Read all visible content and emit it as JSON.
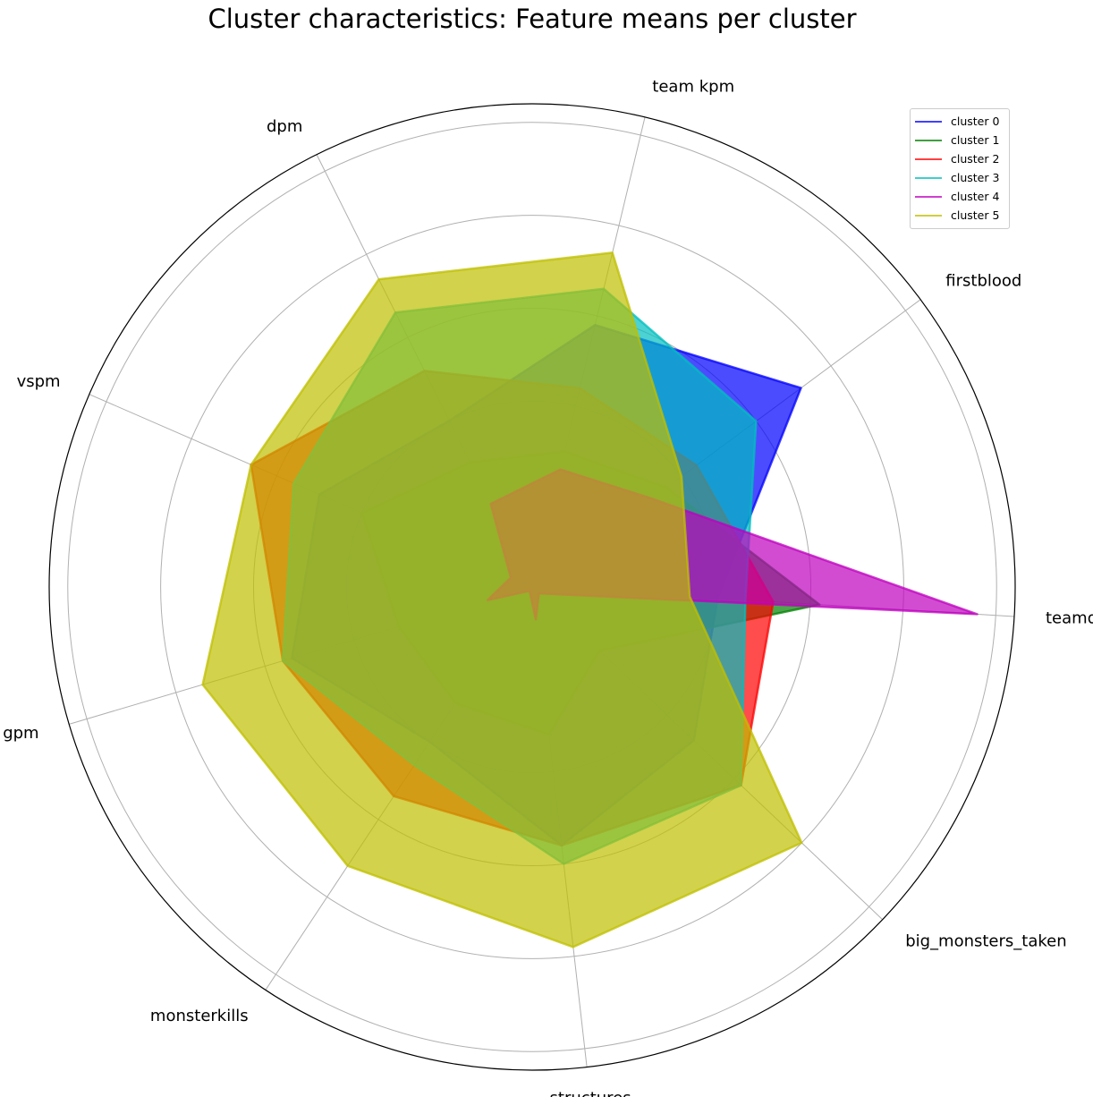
{
  "chart_data": {
    "type": "radar",
    "title": "Cluster characteristics: Feature means per cluster",
    "axes": [
      "teamdeaths",
      "firstblood",
      "team kpm",
      "dpm",
      "vspm",
      "earned gpm",
      "monsterkills",
      "structures",
      "big_monsters_taken"
    ],
    "radial_range": [
      0,
      5.2
    ],
    "grid": true,
    "legend_position": "top-right",
    "series": [
      {
        "name": "cluster 0",
        "color": "#0000ff",
        "values": [
          2.0,
          3.6,
          2.9,
          2.0,
          2.5,
          2.7,
          2.0,
          2.8,
          2.4
        ]
      },
      {
        "name": "cluster 1",
        "color": "#008000",
        "values": [
          3.1,
          1.8,
          1.5,
          1.5,
          2.0,
          1.5,
          1.5,
          1.6,
          1.0
        ]
      },
      {
        "name": "cluster 2",
        "color": "#ff0000",
        "values": [
          2.6,
          2.2,
          2.2,
          2.6,
          3.3,
          2.8,
          2.7,
          2.8,
          3.1
        ]
      },
      {
        "name": "cluster 3",
        "color": "#00bfbf",
        "values": [
          2.3,
          3.0,
          3.3,
          3.3,
          2.8,
          2.8,
          2.3,
          3.0,
          3.1
        ]
      },
      {
        "name": "cluster 4",
        "color": "#bf00bf",
        "values": [
          4.8,
          1.6,
          1.3,
          1.0,
          0.25,
          0.5,
          0.05,
          0.35,
          0.1
        ]
      },
      {
        "name": "cluster 5",
        "color": "#bfbf00",
        "values": [
          1.7,
          2.0,
          3.7,
          3.7,
          3.3,
          3.7,
          3.6,
          3.9,
          4.0
        ]
      }
    ]
  }
}
